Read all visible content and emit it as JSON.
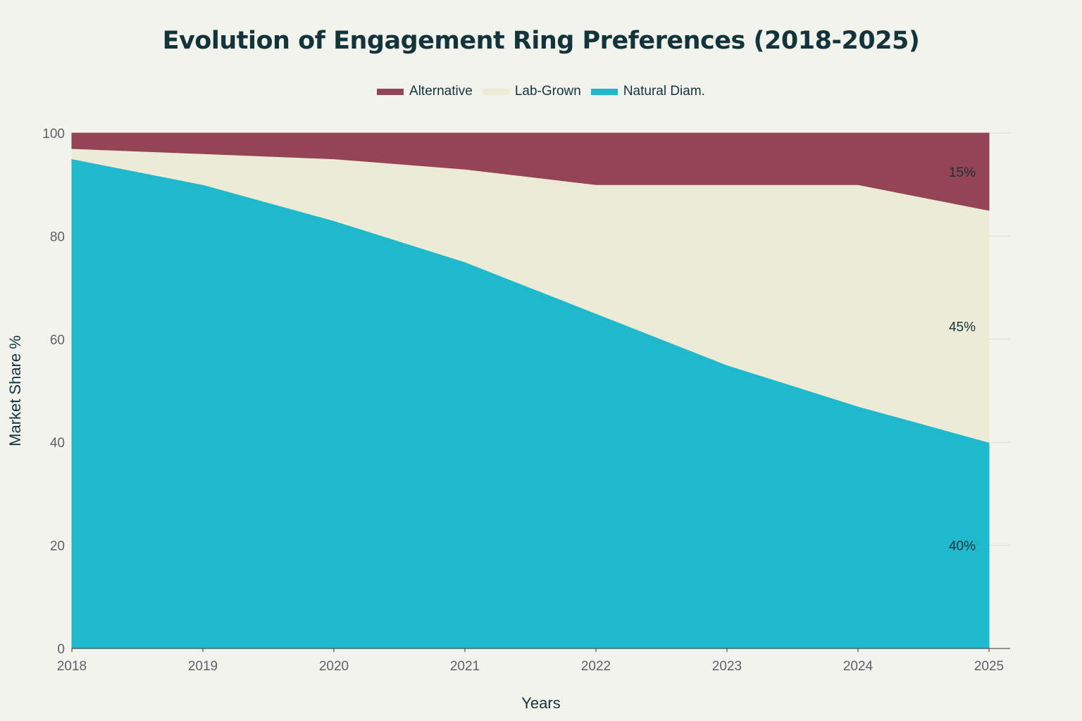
{
  "chart_data": {
    "type": "area",
    "stacked": true,
    "title": "Evolution of Engagement Ring Preferences (2018-2025)",
    "xlabel": "Years",
    "ylabel": "Market Share %",
    "x": [
      2018,
      2019,
      2020,
      2021,
      2022,
      2023,
      2024,
      2025
    ],
    "xlim": [
      2018,
      2025
    ],
    "ylim": [
      0,
      100
    ],
    "y_ticks": [
      0,
      20,
      40,
      60,
      80,
      100
    ],
    "grid": true,
    "legend_position": "top-center",
    "series": [
      {
        "name": "Natural Diam.",
        "color": "#1fb8cd",
        "values": [
          95,
          90,
          83,
          75,
          65,
          55,
          47,
          40
        ]
      },
      {
        "name": "Lab-Grown",
        "color": "#ecebd5",
        "values": [
          2,
          6,
          12,
          18,
          25,
          35,
          43,
          45
        ]
      },
      {
        "name": "Alternative",
        "color": "#944454",
        "values": [
          3,
          4,
          5,
          7,
          10,
          10,
          10,
          15
        ]
      }
    ],
    "legend_order": [
      "Alternative",
      "Lab-Grown",
      "Natural Diam."
    ],
    "annotations": [
      {
        "series": "Alternative",
        "text": "15%"
      },
      {
        "series": "Lab-Grown",
        "text": "45%"
      },
      {
        "series": "Natural Diam.",
        "text": "40%"
      }
    ]
  }
}
